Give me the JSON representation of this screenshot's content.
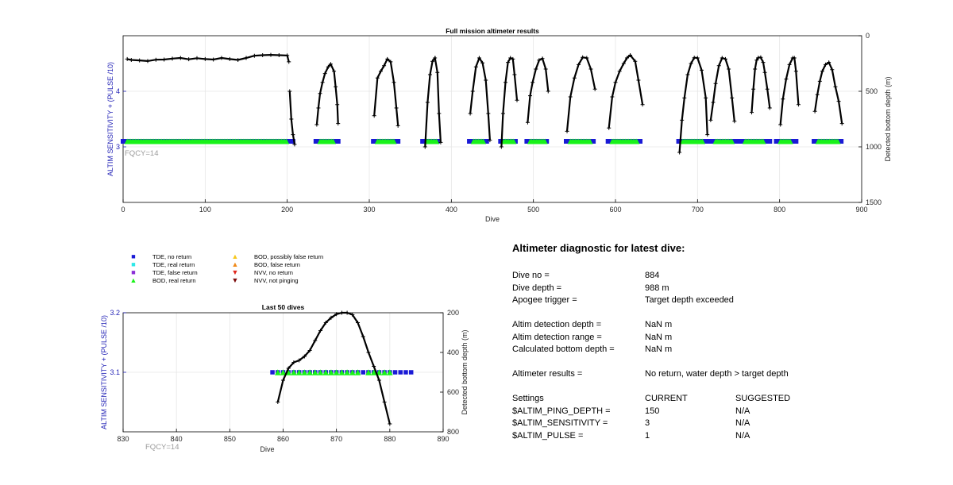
{
  "colors": {
    "tde_no_return": "#1a1ad6",
    "tde_real_return": "#2ee8e8",
    "tde_false_return": "#8b2fd6",
    "bod_real_return": "#19f219",
    "bod_possibly_false": "#f7c81e",
    "bod_false_return": "#f08a1a",
    "nvv_no_return": "#e0281e",
    "nvv_not_pinging": "#7a0a0a",
    "left_axis": "#1f1fb5",
    "fqcy_text": "#9a9a9a",
    "depth_line": "#000000"
  },
  "chart_data": [
    {
      "type": "line",
      "title": "Full mission altimeter results",
      "xlabel": "Dive",
      "ylabel": "ALTIM SENSITIVITY + (PULSE /10)",
      "ylabel_right": "Detected bottom depth (m)",
      "xlim": [
        0,
        900
      ],
      "ylim": [
        2,
        5
      ],
      "ylim_right": [
        1500,
        0
      ],
      "x_ticks": [
        "0",
        "100",
        "200",
        "300",
        "400",
        "500",
        "600",
        "700",
        "800",
        "900"
      ],
      "y_ticks": [
        "3",
        "4"
      ],
      "y_right_ticks": [
        "0",
        "500",
        "1000",
        "1500"
      ],
      "grid": true,
      "annotation": "FQCY=14",
      "sensitivity_value": 3.1,
      "series": [
        {
          "marker": "tde-no-return",
          "ranges": [
            [
              0,
              209
            ],
            [
              235,
              262
            ],
            [
              305,
              335
            ],
            [
              365,
              385
            ],
            [
              422,
              445
            ],
            [
              460,
              480
            ],
            [
              492,
              518
            ],
            [
              540,
              575
            ],
            [
              591,
              632
            ],
            [
              677,
              712
            ],
            [
              715,
              750
            ],
            [
              752,
              789
            ],
            [
              796,
              820
            ],
            [
              842,
              876
            ]
          ]
        },
        {
          "marker": "bod-real-return",
          "ranges": [
            [
              5,
              200
            ],
            [
              240,
              257
            ],
            [
              310,
              330
            ],
            [
              370,
              382
            ],
            [
              427,
              440
            ],
            [
              464,
              476
            ],
            [
              496,
              514
            ],
            [
              545,
              570
            ],
            [
              596,
              627
            ],
            [
              682,
              707
            ],
            [
              722,
              743
            ],
            [
              758,
              780
            ],
            [
              801,
              814
            ],
            [
              847,
              872
            ]
          ]
        },
        {
          "marker": "depth",
          "segments": [
            [
              [
                5,
                210
              ],
              [
                10,
                218
              ],
              [
                20,
                222
              ],
              [
                30,
                228
              ],
              [
                40,
                216
              ],
              [
                50,
                214
              ],
              [
                60,
                206
              ],
              [
                70,
                200
              ],
              [
                80,
                212
              ],
              [
                90,
                202
              ],
              [
                100,
                210
              ],
              [
                110,
                214
              ],
              [
                120,
                200
              ],
              [
                130,
                210
              ],
              [
                140,
                218
              ],
              [
                150,
                200
              ],
              [
                160,
                180
              ],
              [
                170,
                175
              ],
              [
                180,
                172
              ],
              [
                190,
                175
              ],
              [
                200,
                178
              ],
              [
                202,
                235
              ]
            ],
            [
              [
                203,
                500
              ],
              [
                205,
                750
              ],
              [
                207,
                890
              ],
              [
                209,
                978
              ]
            ],
            [
              [
                236,
                800
              ],
              [
                238,
                650
              ],
              [
                240,
                520
              ],
              [
                243,
                420
              ],
              [
                246,
                340
              ],
              [
                250,
                280
              ],
              [
                253,
                255
              ],
              [
                257,
                320
              ],
              [
                259,
                460
              ],
              [
                261,
                620
              ],
              [
                262,
                790
              ]
            ],
            [
              [
                306,
                720
              ],
              [
                310,
                380
              ],
              [
                314,
                320
              ],
              [
                318,
                270
              ],
              [
                322,
                210
              ],
              [
                326,
                235
              ],
              [
                330,
                420
              ],
              [
                333,
                650
              ],
              [
                335,
                810
              ]
            ],
            [
              [
                368,
                1000
              ],
              [
                371,
                600
              ],
              [
                374,
                350
              ],
              [
                377,
                230
              ],
              [
                380,
                200
              ],
              [
                383,
                330
              ],
              [
                385,
                700
              ],
              [
                387,
                960
              ]
            ],
            [
              [
                423,
                700
              ],
              [
                426,
                500
              ],
              [
                430,
                280
              ],
              [
                434,
                200
              ],
              [
                438,
                245
              ],
              [
                442,
                400
              ],
              [
                445,
                700
              ],
              [
                447,
                940
              ]
            ],
            [
              [
                461,
                1000
              ],
              [
                463,
                700
              ],
              [
                466,
                420
              ],
              [
                469,
                240
              ],
              [
                472,
                200
              ],
              [
                475,
                210
              ],
              [
                477,
                350
              ],
              [
                480,
                580
              ]
            ],
            [
              [
                493,
                780
              ],
              [
                496,
                540
              ],
              [
                499,
                420
              ],
              [
                503,
                300
              ],
              [
                507,
                220
              ],
              [
                511,
                205
              ],
              [
                515,
                300
              ],
              [
                518,
                500
              ]
            ],
            [
              [
                541,
                860
              ],
              [
                545,
                550
              ],
              [
                550,
                380
              ],
              [
                555,
                260
              ],
              [
                560,
                195
              ],
              [
                565,
                200
              ],
              [
                570,
                300
              ],
              [
                575,
                480
              ]
            ],
            [
              [
                592,
                830
              ],
              [
                596,
                550
              ],
              [
                600,
                420
              ],
              [
                605,
                320
              ],
              [
                610,
                250
              ],
              [
                614,
                200
              ],
              [
                618,
                175
              ],
              [
                624,
                230
              ],
              [
                628,
                400
              ],
              [
                633,
                620
              ]
            ],
            [
              [
                678,
                1050
              ],
              [
                681,
                760
              ],
              [
                684,
                560
              ],
              [
                688,
                350
              ],
              [
                692,
                250
              ],
              [
                696,
                198
              ],
              [
                700,
                200
              ],
              [
                705,
                310
              ],
              [
                710,
                560
              ],
              [
                712,
                890
              ]
            ],
            [
              [
                716,
                760
              ],
              [
                719,
                600
              ],
              [
                722,
                430
              ],
              [
                726,
                270
              ],
              [
                730,
                200
              ],
              [
                734,
                210
              ],
              [
                738,
                300
              ],
              [
                742,
                560
              ],
              [
                745,
                770
              ]
            ],
            [
              [
                766,
                690
              ],
              [
                768,
                480
              ],
              [
                770,
                300
              ],
              [
                772,
                220
              ],
              [
                774,
                198
              ],
              [
                777,
                195
              ],
              [
                780,
                240
              ],
              [
                782,
                330
              ],
              [
                785,
                480
              ],
              [
                788,
                650
              ]
            ],
            [
              [
                801,
                800
              ],
              [
                804,
                570
              ],
              [
                808,
                390
              ],
              [
                812,
                260
              ],
              [
                816,
                200
              ],
              [
                818,
                200
              ],
              [
                820,
                320
              ],
              [
                823,
                620
              ]
            ],
            [
              [
                843,
                680
              ],
              [
                846,
                530
              ],
              [
                849,
                410
              ],
              [
                852,
                320
              ],
              [
                856,
                260
              ],
              [
                860,
                240
              ],
              [
                864,
                305
              ],
              [
                868,
                460
              ],
              [
                872,
                590
              ],
              [
                876,
                790
              ]
            ]
          ]
        }
      ]
    },
    {
      "type": "line",
      "title": "Last 50 dives",
      "xlabel": "Dive",
      "ylabel": "ALTIM SENSITIVITY + (PULSE /10)",
      "ylabel_right": "Detected bottom depth (m)",
      "xlim": [
        830,
        890
      ],
      "ylim": [
        3.0,
        3.2
      ],
      "ylim_right": [
        800,
        200
      ],
      "x_ticks": [
        "830",
        "840",
        "850",
        "860",
        "870",
        "880",
        "890"
      ],
      "y_ticks": [
        "3.1",
        "3.2"
      ],
      "y_right_ticks": [
        "200",
        "400",
        "600",
        "800"
      ],
      "grid": true,
      "annotation": "FQCY=14",
      "series": [
        {
          "marker": "tde-no-return",
          "y": 3.1,
          "x": [
            858,
            859,
            860,
            861,
            862,
            863,
            864,
            865,
            866,
            867,
            868,
            869,
            870,
            871,
            872,
            873,
            874,
            875,
            876,
            877,
            878,
            879,
            880,
            881,
            882,
            883,
            884
          ]
        },
        {
          "marker": "bod-real-return",
          "y": 3.1,
          "x": [
            859,
            860,
            861,
            862,
            863,
            864,
            865,
            866,
            867,
            868,
            869,
            870,
            871,
            872,
            873,
            874,
            876,
            877,
            878,
            879,
            880
          ]
        },
        {
          "marker": "depth",
          "x": [
            859,
            860,
            861,
            862,
            863,
            864,
            865,
            866,
            867,
            868,
            869,
            870,
            871,
            872,
            873,
            874,
            875,
            876,
            877,
            878,
            879,
            880
          ],
          "y": [
            650,
            540,
            480,
            450,
            440,
            420,
            390,
            340,
            290,
            250,
            225,
            207,
            200,
            200,
            210,
            250,
            320,
            400,
            470,
            540,
            650,
            760
          ]
        }
      ]
    }
  ],
  "legend": {
    "items": [
      {
        "glyph": "■",
        "label": "TDE, no return",
        "color_key": "tde_no_return"
      },
      {
        "glyph": "■",
        "label": "TDE, real return",
        "color_key": "tde_real_return"
      },
      {
        "glyph": "■",
        "label": "TDE, false return",
        "color_key": "tde_false_return"
      },
      {
        "glyph": "▲",
        "label": "BOD, real return",
        "color_key": "bod_real_return"
      },
      {
        "glyph": "▲",
        "label": "BOD, possibly false return",
        "color_key": "bod_possibly_false"
      },
      {
        "glyph": "▲",
        "label": "BOD, false return",
        "color_key": "bod_false_return"
      },
      {
        "glyph": "▼",
        "label": "NVV, no return",
        "color_key": "nvv_no_return"
      },
      {
        "glyph": "▼",
        "label": "NVV, not pinging",
        "color_key": "nvv_not_pinging"
      }
    ]
  },
  "diagnostic": {
    "title": "Altimeter diagnostic for latest dive:",
    "rows": [
      {
        "label": "Dive no =",
        "value": "884"
      },
      {
        "label": "Dive depth =",
        "value": "988 m"
      },
      {
        "label": "Apogee trigger =",
        "value": "Target depth exceeded"
      },
      {
        "label": "Altim detection depth =",
        "value": "NaN m"
      },
      {
        "label": "Altim detection range =",
        "value": "NaN m"
      },
      {
        "label": "Calculated bottom depth =",
        "value": "NaN m"
      },
      {
        "label": "Altimeter results =",
        "value": "No return, water depth > target depth"
      }
    ],
    "settings": {
      "header": {
        "label": "Settings",
        "current": "CURRENT",
        "suggested": "SUGGESTED"
      },
      "rows": [
        {
          "label": "$ALTIM_PING_DEPTH =",
          "current": "150",
          "suggested": "N/A"
        },
        {
          "label": "$ALTIM_SENSITIVITY =",
          "current": "3",
          "suggested": "N/A"
        },
        {
          "label": "$ALTIM_PULSE =",
          "current": "1",
          "suggested": "N/A"
        }
      ]
    }
  }
}
